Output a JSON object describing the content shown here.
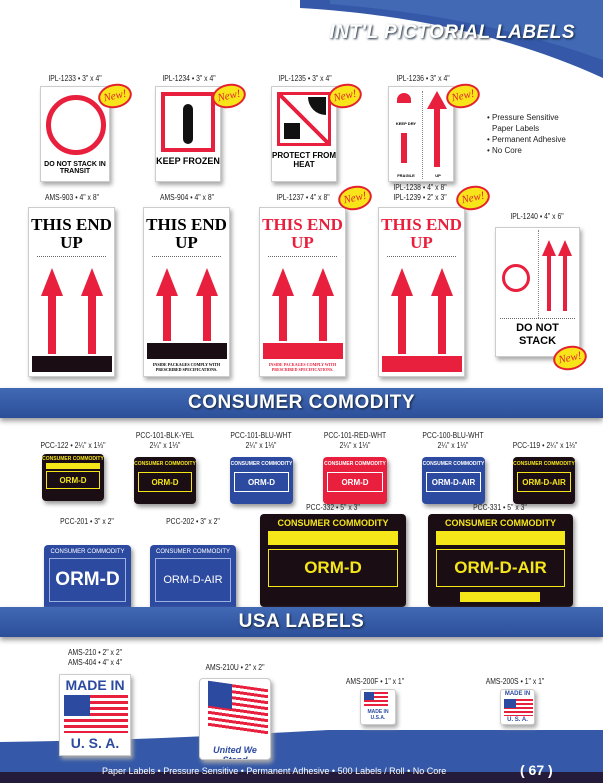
{
  "sections": {
    "intl": "INT'L PICTORIAL LABELS",
    "consumer": "CONSUMER COMODITY",
    "usa": "USA LABELS"
  },
  "new_badge": "New!",
  "intl_row1": [
    {
      "code": "IPL-1233 • 3\" x 4\"",
      "text": "DO NOT STACK IN TRANSIT"
    },
    {
      "code": "IPL-1234 • 3\" x 4\"",
      "text": "KEEP FROZEN"
    },
    {
      "code": "IPL-1235 • 3\" x 4\"",
      "text": "PROTECT FROM HEAT"
    },
    {
      "code": "IPL-1236 • 3\" x 4\"",
      "text1": "KEEP DRY",
      "text2": "FRAGILE",
      "text3": "UP"
    }
  ],
  "features": [
    "• Pressure Sensitive",
    "Paper Labels",
    "• Permanent Adhesive",
    "• No Core"
  ],
  "intl_row2": [
    {
      "code": "AMS-903 • 4\" x 8\"",
      "text": "THIS END UP"
    },
    {
      "code": "AMS-904 • 4\" x 8\"",
      "text": "THIS END UP",
      "fine": "INSIDE PACKAGES COMPLY WITH PRESCRIBED SPECIFICATIONS."
    },
    {
      "code": "IPL-1237 • 4\" x 8\"",
      "text": "THIS END UP",
      "fine": "INSIDE PACKAGES COMPLY WITH PRESCRIBED SPECIFICATIONS."
    },
    {
      "code": "IPL-1238 • 4\" x 8\"",
      "code2": "IPL-1239 • 2\" x 3\"",
      "text": "THIS END UP"
    },
    {
      "code": "IPL-1240 • 4\" x 6\"",
      "text": "DO NOT STACK"
    }
  ],
  "consumer_small": [
    {
      "code": "PCC-122 • 2¼\" x 1⅓\"",
      "header": "CONSUMER COMMODITY",
      "main": "ORM-D",
      "bg": "#1a0d14",
      "fg": "#f5e61a"
    },
    {
      "code": "PCC-101-BLK-YEL",
      "size": "2¼\" x 1⅓\"",
      "header": "CONSUMER COMMODITY",
      "main": "ORM-D",
      "bg": "#1a0d14",
      "fg": "#f5e61a"
    },
    {
      "code": "PCC-101-BLU-WHT",
      "size": "2¼\" x 1⅓\"",
      "header": "CONSUMER COMMODITY",
      "main": "ORM-D",
      "bg": "#2c4aa0",
      "fg": "#ffffff"
    },
    {
      "code": "PCC-101-RED-WHT",
      "size": "2¼\" x 1⅓\"",
      "header": "CONSUMER COMMODITY",
      "main": "ORM-D",
      "bg": "#e8203d",
      "fg": "#ffffff"
    },
    {
      "code": "PCC-100-BLU-WHT",
      "size": "2¼\" x 1⅓\"",
      "header": "CONSUMER COMMODITY",
      "main": "ORM-D-AIR",
      "bg": "#2c4aa0",
      "fg": "#ffffff"
    },
    {
      "code": "PCC-119 • 2¼\" x 1⅓\"",
      "header": "CONSUMER COMMODITY",
      "main": "ORM-D-AIR",
      "bg": "#1a0d14",
      "fg": "#f5e61a"
    }
  ],
  "consumer_large": [
    {
      "code": "PCC-201 • 3\" x 2\"",
      "header": "CONSUMER COMMODITY",
      "main": "ORM-D"
    },
    {
      "code": "PCC-202 • 3\" x 2\"",
      "header": "CONSUMER COMMODITY",
      "main": "ORM-D-AIR"
    },
    {
      "code": "PCC-332 • 5\" x 3\"",
      "header": "CONSUMER COMMODITY",
      "main": "ORM-D"
    },
    {
      "code": "PCC-331 • 5\" x 3\"",
      "header": "CONSUMER COMMODITY",
      "main": "ORM-D-AIR"
    }
  ],
  "usa": [
    {
      "code": "AMS-210 • 2\" x 2\"",
      "code2": "AMS-404 • 4\" x 4\"",
      "top": "MADE IN",
      "bottom": "U.  S.  A."
    },
    {
      "code": "AMS-210U • 2\" x 2\"",
      "bottom": "United We Stand"
    },
    {
      "code": "AMS-200F • 1\" x 1\"",
      "bottom": "MADE IN U.S.A."
    },
    {
      "code": "AMS-200S • 1\" x 1\"",
      "top": "MADE IN",
      "bottom": "U.  S.  A."
    }
  ],
  "footer": {
    "text": "Paper Labels • Pressure Sensitive • Permanent Adhesive • 500 Labels / Roll • No Core",
    "page": "( 67 )"
  },
  "colors": {
    "blue": "#2d4f9a",
    "red": "#e8203d",
    "yellow": "#f5e61a"
  }
}
